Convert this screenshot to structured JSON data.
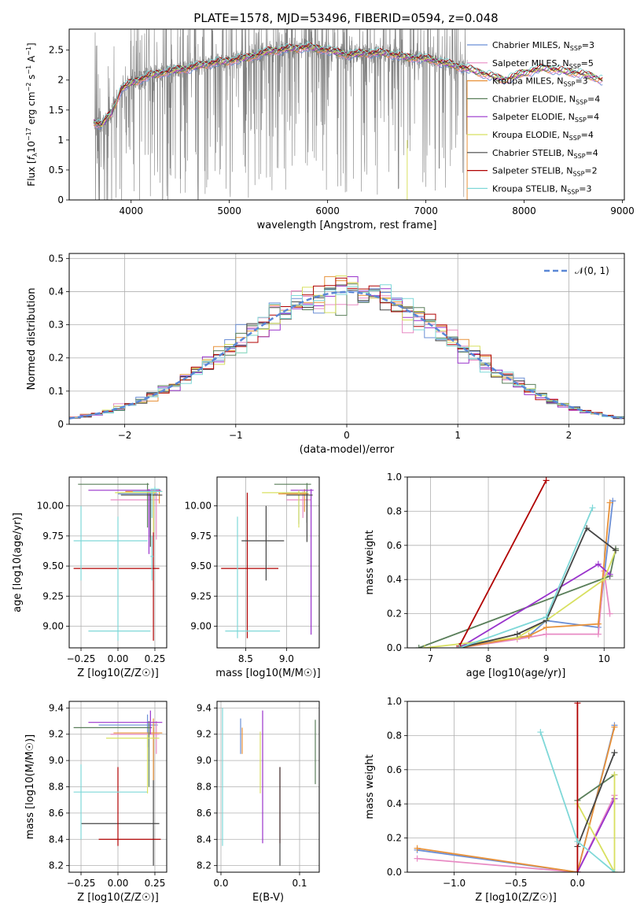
{
  "figure": {
    "title": "PLATE=1578, MJD=53496, FIBERID=0594, z=0.048"
  },
  "series_styles": [
    {
      "name": "Chabrier MILES",
      "nssp": "3",
      "color": "#6b8fd6"
    },
    {
      "name": "Salpeter MILES",
      "nssp": "5",
      "color": "#e88bc4"
    },
    {
      "name": "Kroupa MILES",
      "nssp": "3",
      "color": "#e8923a"
    },
    {
      "name": "Chabrier ELODIE",
      "nssp": "4",
      "color": "#5a7f5a"
    },
    {
      "name": "Salpeter ELODIE",
      "nssp": "4",
      "color": "#9933cc"
    },
    {
      "name": "Kroupa ELODIE",
      "nssp": "4",
      "color": "#d8e060"
    },
    {
      "name": "Chabrier STELIB",
      "nssp": "4",
      "color": "#444444"
    },
    {
      "name": "Salpeter STELIB",
      "nssp": "2",
      "color": "#b00000"
    },
    {
      "name": "Kroupa STELIB",
      "nssp": "3",
      "color": "#7fd8d8"
    }
  ],
  "data_color": "#808080",
  "chart_data": [
    {
      "id": "spectrum",
      "type": "line",
      "xlabel": "wavelength [Angstrom, rest frame]",
      "ylabel": "Flux [f_λ 10^-17 erg cm^-2 s^-1 A^-1]",
      "xlim": [
        3370,
        9020
      ],
      "ylim": [
        0,
        2.85
      ],
      "xticks": [
        4000,
        5000,
        6000,
        7000,
        8000,
        9000
      ],
      "yticks": [
        0.0,
        0.5,
        1.0,
        1.5,
        2.0,
        2.5
      ],
      "grid": false,
      "legend": "right",
      "data_range": [
        3620,
        7420
      ],
      "model_range": [
        3620,
        8800
      ],
      "model_profile": {
        "x": [
          3620,
          3700,
          3800,
          3900,
          4000,
          4100,
          4200,
          4400,
          4600,
          4800,
          5000,
          5200,
          5400,
          5600,
          5800,
          6000,
          6200,
          6400,
          6600,
          6800,
          7000,
          7200,
          7400,
          7600,
          7800,
          8000,
          8200,
          8400,
          8600,
          8800
        ],
        "y": [
          1.3,
          1.25,
          1.45,
          1.85,
          1.95,
          2.02,
          2.08,
          2.15,
          2.2,
          2.28,
          2.32,
          2.38,
          2.48,
          2.52,
          2.55,
          2.5,
          2.42,
          2.45,
          2.45,
          2.38,
          2.36,
          2.28,
          2.2,
          2.1,
          2.0,
          2.12,
          2.2,
          2.15,
          2.1,
          2.0
        ]
      }
    },
    {
      "id": "residual_histogram",
      "type": "histogram",
      "xlabel": "(data-model)/error",
      "ylabel": "Normed distribution",
      "xlim": [
        -2.5,
        2.5
      ],
      "ylim": [
        0,
        0.515
      ],
      "xticks": [
        -2,
        -1,
        0,
        1,
        2
      ],
      "yticks": [
        0.0,
        0.1,
        0.2,
        0.3,
        0.4,
        0.5
      ],
      "grid": true,
      "legend": "top-right",
      "legend_label": "𝒩(0, 1)",
      "bin_width": 0.1,
      "normal_curve_color": "#5a87d6"
    },
    {
      "id": "age_vs_Z",
      "type": "errorbar",
      "xlabel": "Z [log10(Z/Z☉)]",
      "ylabel": "age [log10(age/yr)]",
      "xlim": [
        -0.33,
        0.33
      ],
      "ylim": [
        8.82,
        10.24
      ],
      "xticks": [
        -0.25,
        0.0,
        0.25
      ],
      "xticklabels": [
        "−0.25",
        "0.00",
        "0.25"
      ],
      "yticks": [
        9.0,
        9.25,
        9.5,
        9.75,
        10.0
      ],
      "yticklabels": [
        "9.00",
        "9.25",
        "9.50",
        "9.75",
        "10.00"
      ],
      "grid": true,
      "points": [
        {
          "s": 7,
          "x": 0.24,
          "y": 9.48,
          "xlo": -0.3,
          "xhi": 0.28,
          "ylo": 8.88,
          "yhi": 10.11
        },
        {
          "s": 8,
          "x": 0.0,
          "y": 8.96,
          "xlo": -0.2,
          "xhi": 0.22,
          "ylo": 8.88,
          "yhi": 9.91
        },
        {
          "s": 0,
          "x": 0.22,
          "y": 10.1,
          "xlo": 0.0,
          "xhi": 0.27,
          "ylo": 9.74,
          "yhi": 10.12
        },
        {
          "s": 1,
          "x": 0.26,
          "y": 10.05,
          "xlo": -0.05,
          "xhi": 0.28,
          "ylo": 9.72,
          "yhi": 10.12
        },
        {
          "s": 2,
          "x": 0.28,
          "y": 10.12,
          "xlo": 0.05,
          "xhi": 0.3,
          "ylo": 10.02,
          "yhi": 10.14
        },
        {
          "s": 3,
          "x": 0.2,
          "y": 10.18,
          "xlo": -0.27,
          "xhi": 0.21,
          "ylo": 9.82,
          "yhi": 10.19
        },
        {
          "s": 4,
          "x": 0.21,
          "y": 10.13,
          "xlo": -0.2,
          "xhi": 0.29,
          "ylo": 9.6,
          "yhi": 10.14
        },
        {
          "s": 5,
          "x": 0.24,
          "y": 10.11,
          "xlo": -0.02,
          "xhi": 0.26,
          "ylo": 9.78,
          "yhi": 10.13
        },
        {
          "s": 6,
          "x": 0.22,
          "y": 10.09,
          "xlo": 0.02,
          "xhi": 0.3,
          "ylo": 9.66,
          "yhi": 10.1
        },
        {
          "s": 8,
          "x": 0.23,
          "y": 10.12,
          "xlo": 0.1,
          "xhi": 0.3,
          "ylo": 9.9,
          "yhi": 10.14
        },
        {
          "s": 8,
          "x": 0.25,
          "y": 10.14,
          "xlo": 0.22,
          "xhi": 0.28,
          "ylo": 10.12,
          "yhi": 10.16
        },
        {
          "s": 8,
          "x": 0.23,
          "y": 9.58,
          "xlo": 0.22,
          "xhi": 0.24,
          "ylo": 9.38,
          "yhi": 9.75
        },
        {
          "s": 8,
          "x": -0.25,
          "y": 9.71,
          "xlo": -0.3,
          "xhi": 0.2,
          "ylo": 9.38,
          "yhi": 10.0
        }
      ]
    },
    {
      "id": "age_vs_mass",
      "type": "errorbar",
      "xlabel": "mass [log10(M/M☉)]",
      "ylabel": "",
      "xlim": [
        8.15,
        9.4
      ],
      "ylim": [
        8.82,
        10.24
      ],
      "xticks": [
        8.5,
        9.0
      ],
      "xticklabels": [
        "8.5",
        "9.0"
      ],
      "yticks": [
        9.0,
        9.25,
        9.5,
        9.75,
        10.0
      ],
      "yticklabels": [
        "9.00",
        "9.25",
        "9.50",
        "9.75",
        "10.00"
      ],
      "grid": true,
      "points": [
        {
          "s": 7,
          "x": 8.52,
          "y": 9.48,
          "xlo": 8.2,
          "xhi": 8.9,
          "ylo": 8.9,
          "yhi": 10.11
        },
        {
          "s": 8,
          "x": 8.4,
          "y": 8.96,
          "xlo": 8.25,
          "xhi": 8.92,
          "ylo": 8.9,
          "yhi": 9.91
        },
        {
          "s": 6,
          "x": 8.75,
          "y": 9.71,
          "xlo": 8.45,
          "xhi": 8.97,
          "ylo": 9.38,
          "yhi": 10.0
        },
        {
          "s": 0,
          "x": 9.15,
          "y": 10.1,
          "xlo": 8.95,
          "xhi": 9.27,
          "ylo": 9.85,
          "yhi": 10.12
        },
        {
          "s": 1,
          "x": 9.2,
          "y": 10.05,
          "xlo": 9.0,
          "xhi": 9.3,
          "ylo": 9.9,
          "yhi": 10.12
        },
        {
          "s": 2,
          "x": 9.22,
          "y": 10.1,
          "xlo": 8.9,
          "xhi": 9.27,
          "ylo": 9.95,
          "yhi": 10.14
        },
        {
          "s": 3,
          "x": 9.25,
          "y": 10.18,
          "xlo": 8.85,
          "xhi": 9.3,
          "ylo": 9.86,
          "yhi": 10.19
        },
        {
          "s": 4,
          "x": 9.3,
          "y": 10.13,
          "xlo": 9.05,
          "xhi": 9.33,
          "ylo": 8.93,
          "yhi": 10.14
        },
        {
          "s": 5,
          "x": 9.15,
          "y": 10.11,
          "xlo": 8.7,
          "xhi": 9.25,
          "ylo": 9.82,
          "yhi": 10.13
        },
        {
          "s": 6,
          "x": 9.25,
          "y": 10.09,
          "xlo": 9.0,
          "xhi": 9.32,
          "ylo": 9.7,
          "yhi": 10.1
        }
      ]
    },
    {
      "id": "mass_weight_vs_age",
      "type": "line",
      "xlabel": "age [log10(age/yr)]",
      "ylabel": "mass weight",
      "xlim": [
        6.6,
        10.35
      ],
      "ylim": [
        0,
        1.0
      ],
      "xticks": [
        7,
        8,
        9,
        10
      ],
      "yticks": [
        0.0,
        0.2,
        0.4,
        0.6,
        0.8,
        1.0
      ],
      "yticklabels": [
        "0.0",
        "0.2",
        "0.4",
        "0.6",
        "0.8",
        "1.0"
      ],
      "grid": true,
      "series": [
        {
          "s": 0,
          "x": [
            7.5,
            8.7,
            9.0,
            9.9,
            10.15
          ],
          "y": [
            0.01,
            0.07,
            0.16,
            0.12,
            0.86
          ]
        },
        {
          "s": 1,
          "x": [
            7.5,
            8.5,
            9.0,
            9.9,
            10.0,
            10.1
          ],
          "y": [
            0.0,
            0.05,
            0.08,
            0.08,
            0.45,
            0.2
          ]
        },
        {
          "s": 2,
          "x": [
            7.5,
            8.7,
            9.0,
            9.9,
            10.1
          ],
          "y": [
            0.0,
            0.07,
            0.12,
            0.14,
            0.85
          ]
        },
        {
          "s": 3,
          "x": [
            6.8,
            10.1,
            10.2
          ],
          "y": [
            0.0,
            0.42,
            0.58
          ]
        },
        {
          "s": 4,
          "x": [
            7.5,
            9.9,
            10.1
          ],
          "y": [
            0.0,
            0.49,
            0.43
          ]
        },
        {
          "s": 5,
          "x": [
            6.9,
            8.5,
            9.0,
            10.0,
            10.2
          ],
          "y": [
            0.0,
            0.06,
            0.16,
            0.4,
            0.57
          ]
        },
        {
          "s": 6,
          "x": [
            7.5,
            8.5,
            9.0,
            9.7,
            10.2
          ],
          "y": [
            0.0,
            0.08,
            0.16,
            0.7,
            0.57
          ]
        },
        {
          "s": 7,
          "x": [
            7.5,
            9.0
          ],
          "y": [
            0.01,
            0.98
          ]
        },
        {
          "s": 8,
          "x": [
            7.5,
            9.0,
            9.8
          ],
          "y": [
            0.0,
            0.18,
            0.82
          ]
        }
      ]
    },
    {
      "id": "mass_vs_Z",
      "type": "errorbar",
      "xlabel": "Z [log10(Z/Z☉)]",
      "ylabel": "mass [log10(M/M☉)]",
      "xlim": [
        -0.33,
        0.33
      ],
      "ylim": [
        8.15,
        9.45
      ],
      "xticks": [
        -0.25,
        0.0,
        0.25
      ],
      "xticklabels": [
        "−0.25",
        "0.00",
        "0.25"
      ],
      "yticks": [
        8.2,
        8.4,
        8.6,
        8.8,
        9.0,
        9.2,
        9.4
      ],
      "yticklabels": [
        "8.2",
        "8.4",
        "8.6",
        "8.8",
        "9.0",
        "9.2",
        "9.4"
      ],
      "grid": true,
      "points": [
        {
          "s": 6,
          "x": 0.24,
          "y": 8.52,
          "xlo": -0.25,
          "xhi": 0.28,
          "ylo": 8.2,
          "yhi": 9.25
        },
        {
          "s": 7,
          "x": 0.0,
          "y": 8.4,
          "xlo": -0.13,
          "xhi": 0.29,
          "ylo": 8.35,
          "yhi": 8.95
        },
        {
          "s": 8,
          "x": -0.25,
          "y": 8.76,
          "xlo": -0.3,
          "xhi": 0.2,
          "ylo": 8.4,
          "yhi": 8.97
        },
        {
          "s": 0,
          "x": 0.2,
          "y": 9.27,
          "xlo": -0.13,
          "xhi": 0.27,
          "ylo": 9.1,
          "yhi": 9.35
        },
        {
          "s": 1,
          "x": 0.26,
          "y": 9.2,
          "xlo": -0.05,
          "xhi": 0.28,
          "ylo": 9.05,
          "yhi": 9.3
        },
        {
          "s": 2,
          "x": 0.24,
          "y": 9.21,
          "xlo": -0.03,
          "xhi": 0.3,
          "ylo": 8.85,
          "yhi": 9.32
        },
        {
          "s": 3,
          "x": 0.21,
          "y": 9.25,
          "xlo": -0.3,
          "xhi": 0.23,
          "ylo": 8.8,
          "yhi": 9.3
        },
        {
          "s": 4,
          "x": 0.22,
          "y": 9.29,
          "xlo": -0.2,
          "xhi": 0.3,
          "ylo": 9.2,
          "yhi": 9.38
        },
        {
          "s": 5,
          "x": 0.2,
          "y": 9.17,
          "xlo": -0.08,
          "xhi": 0.28,
          "ylo": 8.75,
          "yhi": 9.2
        }
      ]
    },
    {
      "id": "mass_vs_EBV",
      "type": "errorbar",
      "xlabel": "E(B-V)",
      "ylabel": "",
      "xlim": [
        -0.005,
        0.125
      ],
      "ylim": [
        8.15,
        9.45
      ],
      "xticks": [
        0.0,
        0.1
      ],
      "xticklabels": [
        "0.0",
        "0.1"
      ],
      "yticks": [
        8.2,
        8.4,
        8.6,
        8.8,
        9.0,
        9.2,
        9.4
      ],
      "yticklabels": [
        "8.2",
        "8.4",
        "8.6",
        "8.8",
        "9.0",
        "9.2",
        "9.4"
      ],
      "grid": true,
      "points": [
        {
          "s": 0,
          "x": 0.025,
          "y": 9.2,
          "ylo": 9.05,
          "yhi": 9.32
        },
        {
          "s": 2,
          "x": 0.027,
          "y": 9.15,
          "ylo": 9.05,
          "yhi": 9.25
        },
        {
          "s": 5,
          "x": 0.05,
          "y": 9.0,
          "ylo": 8.75,
          "yhi": 9.22
        },
        {
          "s": 4,
          "x": 0.053,
          "y": 8.9,
          "ylo": 8.37,
          "yhi": 9.38
        },
        {
          "s": 7,
          "x": 0.075,
          "y": 8.6,
          "ylo": 8.37,
          "yhi": 8.95
        },
        {
          "s": 6,
          "x": 0.075,
          "y": 8.5,
          "ylo": 8.2,
          "yhi": 8.95
        },
        {
          "s": 3,
          "x": 0.12,
          "y": 9.0,
          "ylo": 8.82,
          "yhi": 9.31
        },
        {
          "s": 8,
          "x": 0.002,
          "y": 8.8,
          "ylo": 8.35,
          "yhi": 9.4
        }
      ]
    },
    {
      "id": "mass_weight_vs_Z",
      "type": "line",
      "xlabel": "Z [log10(Z/Z☉)]",
      "ylabel": "mass weight",
      "xlim": [
        -1.38,
        0.38
      ],
      "ylim": [
        0,
        1.0
      ],
      "xticks": [
        -1.0,
        -0.5,
        0.0
      ],
      "xticklabels": [
        "−1.0",
        "−0.5",
        "0.0"
      ],
      "yticks": [
        0.0,
        0.2,
        0.4,
        0.6,
        0.8,
        1.0
      ],
      "yticklabels": [
        "0.0",
        "0.2",
        "0.4",
        "0.6",
        "0.8",
        "1.0"
      ],
      "grid": true,
      "series": [
        {
          "s": 0,
          "x": [
            -1.3,
            0.0,
            0.3
          ],
          "y": [
            0.13,
            0.0,
            0.86
          ]
        },
        {
          "s": 1,
          "x": [
            -1.3,
            0.0,
            0.3
          ],
          "y": [
            0.08,
            0.0,
            0.45
          ]
        },
        {
          "s": 2,
          "x": [
            -1.3,
            0.0,
            0.3
          ],
          "y": [
            0.14,
            0.0,
            0.85
          ]
        },
        {
          "s": 3,
          "x": [
            0.0,
            0.3
          ],
          "y": [
            0.42,
            0.57
          ]
        },
        {
          "s": 4,
          "x": [
            0.0,
            0.3
          ],
          "y": [
            0.0,
            0.43
          ]
        },
        {
          "s": 5,
          "x": [
            0.0,
            0.3,
            0.3
          ],
          "y": [
            0.4,
            0.0,
            0.57
          ]
        },
        {
          "s": 6,
          "x": [
            0.0,
            0.3
          ],
          "y": [
            0.15,
            0.7
          ]
        },
        {
          "s": 7,
          "x": [
            0.0,
            0.0
          ],
          "y": [
            0.0,
            0.99
          ]
        },
        {
          "s": 8,
          "x": [
            -0.3,
            0.0,
            0.3
          ],
          "y": [
            0.82,
            0.18,
            0.0
          ]
        }
      ]
    }
  ]
}
